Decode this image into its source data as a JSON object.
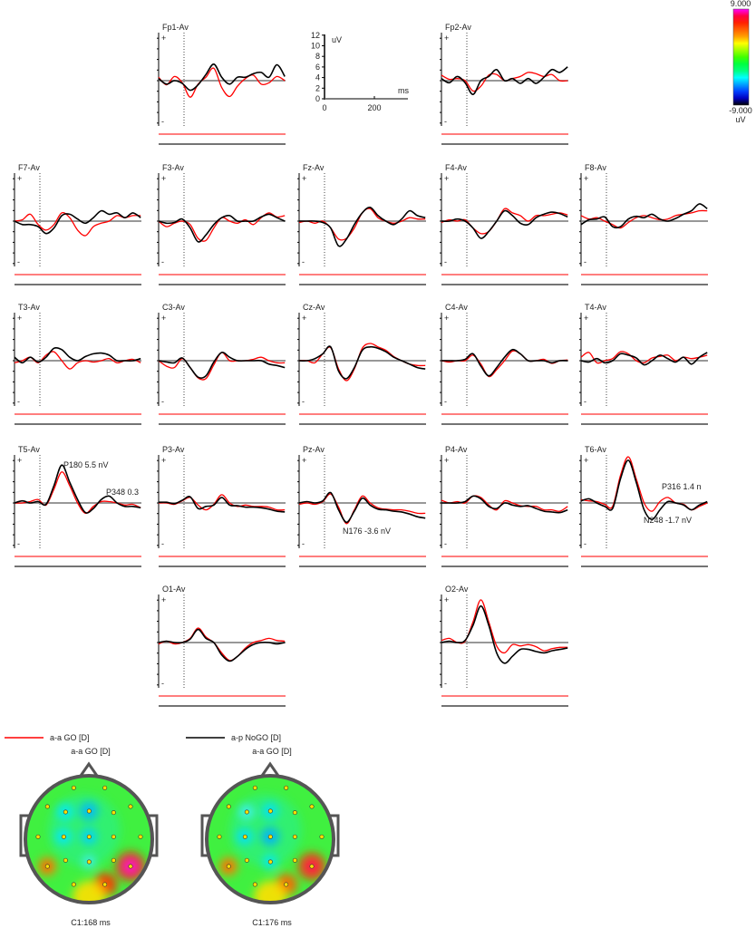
{
  "colorbar": {
    "max_label": "9.000",
    "min_label": "-9.000",
    "unit": "uV",
    "colors": [
      "#ff00ff",
      "#ff0040",
      "#ff2000",
      "#ff6000",
      "#ffa000",
      "#ffff00",
      "#a0ff00",
      "#40ff00",
      "#00ff40",
      "#00ff80",
      "#00ffff",
      "#00a0ff",
      "#0040ff",
      "#0000c0",
      "#000000"
    ]
  },
  "scale_box": {
    "y_unit": "uV",
    "x_unit": "ms",
    "y_ticks": [
      "0",
      "2",
      "4",
      "6",
      "8",
      "10",
      "12"
    ],
    "x_ticks": [
      "0",
      "200"
    ]
  },
  "legend": [
    {
      "label": "a-a GO [D]",
      "color": "#ff0000"
    },
    {
      "label": "a-p NoGO [D]",
      "color": "#000000"
    }
  ],
  "topomaps": [
    {
      "title": "a-a GO [D]",
      "caption": "C1:168 ms"
    },
    {
      "title": "a-a GO [D]",
      "caption": "C1:176 ms"
    }
  ],
  "chart_data": {
    "type": "line",
    "x_ms": [
      0,
      30,
      60,
      90,
      120,
      150,
      180,
      210,
      240,
      270,
      300,
      330,
      360,
      390,
      420,
      450,
      480
    ],
    "series_names": [
      "a-a GO [D]",
      "a-p NoGO [D]"
    ],
    "series_colors": [
      "#ff0000",
      "#000000"
    ],
    "panels": [
      {
        "label": "Fp1-Av",
        "series": [
          {
            "name": "a-a GO [D]",
            "values": [
              0.5,
              -0.6,
              0.6,
              -0.3,
              -2.4,
              -0.5,
              0.5,
              1.8,
              -1.0,
              -2.3,
              -0.8,
              0.3,
              0.8,
              -0.5,
              -0.3,
              0.6,
              0
            ]
          },
          {
            "name": "a-p NoGO [D]",
            "values": [
              0.3,
              -0.5,
              0,
              -0.4,
              -1.4,
              -0.6,
              0.9,
              2.4,
              0.5,
              -0.5,
              0.5,
              0.5,
              1.0,
              1.2,
              0.5,
              2.3,
              0.6
            ]
          }
        ]
      },
      {
        "label": "Fp2-Av",
        "series": [
          {
            "name": "a-a GO [D]",
            "values": [
              0.8,
              0.2,
              0.3,
              0,
              -1.5,
              -0.8,
              0.8,
              0.9,
              0,
              0.3,
              0.6,
              1.2,
              1.0,
              0.6,
              0.9,
              0,
              0
            ]
          },
          {
            "name": "a-p NoGO [D]",
            "values": [
              0.3,
              -0.3,
              0.6,
              -0.3,
              -2.0,
              0,
              0.6,
              1.6,
              0,
              0.3,
              -0.4,
              0.3,
              -0.4,
              0.5,
              1.6,
              1.2,
              2.0
            ]
          }
        ]
      },
      {
        "label": "F7-Av",
        "series": [
          {
            "name": "a-a GO [D]",
            "values": [
              0,
              0.2,
              1.0,
              -0.5,
              -1.3,
              -0.5,
              1.2,
              0.5,
              -1.3,
              -2.1,
              -0.8,
              -0.3,
              0,
              0.8,
              0.5,
              0.8,
              0.8
            ]
          },
          {
            "name": "a-p NoGO [D]",
            "values": [
              0,
              -0.5,
              -0.5,
              -0.8,
              -1.8,
              -1.0,
              0.8,
              1.0,
              0.3,
              -0.3,
              0.5,
              1.5,
              1.0,
              1.2,
              0.5,
              1.2,
              0.5
            ]
          }
        ]
      },
      {
        "label": "F3-Av",
        "series": [
          {
            "name": "a-a GO [D]",
            "values": [
              0,
              -0.8,
              -0.3,
              0,
              -0.5,
              -2.5,
              -2.8,
              -1.0,
              0.5,
              0,
              -0.3,
              0.2,
              -0.5,
              0.5,
              1.2,
              0.6,
              0.8
            ]
          },
          {
            "name": "a-p NoGO [D]",
            "values": [
              0,
              -0.3,
              -0.2,
              0.3,
              -1.0,
              -3.0,
              -2.0,
              -0.5,
              0.5,
              0.8,
              0,
              0,
              0,
              0.6,
              1.0,
              0.5,
              0
            ]
          }
        ]
      },
      {
        "label": "Fz-Av",
        "series": [
          {
            "name": "a-a GO [D]",
            "values": [
              -0.2,
              0,
              -0.3,
              0,
              -1.0,
              -2.6,
              -2.5,
              -1.0,
              1.2,
              1.8,
              0.5,
              0,
              -0.3,
              0,
              0.5,
              0.3,
              0.3
            ]
          },
          {
            "name": "a-p NoGO [D]",
            "values": [
              0,
              0,
              0,
              -0.2,
              -1.0,
              -3.6,
              -2.6,
              -0.5,
              1.2,
              2.0,
              0.8,
              0,
              -0.5,
              0.3,
              1.5,
              0.8,
              0.5
            ]
          }
        ]
      },
      {
        "label": "F4-Av",
        "series": [
          {
            "name": "a-a GO [D]",
            "values": [
              -0.2,
              0.2,
              0,
              0.2,
              -1.0,
              -1.8,
              -1.5,
              0,
              1.8,
              1.2,
              0.8,
              0,
              0.8,
              0.8,
              1.0,
              1.2,
              0.9
            ]
          },
          {
            "name": "a-p NoGO [D]",
            "values": [
              0,
              0,
              0.3,
              0,
              -1.0,
              -2.5,
              -1.5,
              0,
              1.5,
              0.8,
              -0.3,
              -0.5,
              0.5,
              1.0,
              1.3,
              1.1,
              0.6
            ]
          }
        ]
      },
      {
        "label": "F8-Av",
        "series": [
          {
            "name": "a-a GO [D]",
            "values": [
              0.8,
              0.3,
              0.5,
              0,
              -0.5,
              -1.0,
              -0.2,
              0.5,
              0.8,
              0.5,
              0.2,
              0.3,
              0.8,
              1.0,
              1.2,
              1.5,
              1.5
            ]
          },
          {
            "name": "a-p NoGO [D]",
            "values": [
              -0.5,
              0.2,
              0.3,
              0.6,
              -0.8,
              -0.8,
              0.3,
              0.7,
              0.5,
              1.0,
              0.3,
              0,
              0.4,
              1.0,
              1.5,
              2.5,
              1.8
            ]
          }
        ]
      },
      {
        "label": "T3-Av",
        "series": [
          {
            "name": "a-a GO [D]",
            "values": [
              -0.3,
              0,
              0.5,
              -0.3,
              0.8,
              1.3,
              0,
              -1.2,
              -0.3,
              0,
              -0.2,
              0,
              0.3,
              -0.3,
              0,
              0.2,
              -0.3
            ]
          },
          {
            "name": "a-p NoGO [D]",
            "values": [
              0.5,
              -0.3,
              0.5,
              -0.2,
              0.5,
              1.8,
              1.6,
              0.5,
              0,
              0.6,
              1.0,
              1.1,
              0.8,
              0,
              0,
              0,
              0.3
            ]
          }
        ]
      },
      {
        "label": "C3-Av",
        "series": [
          {
            "name": "a-a GO [D]",
            "values": [
              0,
              -0.8,
              -1.0,
              0.3,
              -1.0,
              -2.5,
              -2.6,
              -0.6,
              1.2,
              0,
              0,
              0,
              0.2,
              0.5,
              0,
              -0.3,
              -0.3
            ]
          },
          {
            "name": "a-p NoGO [D]",
            "values": [
              0,
              -0.2,
              -0.3,
              0.4,
              -1.0,
              -2.4,
              -2.2,
              -0.2,
              1.2,
              0.5,
              0,
              0,
              0,
              0,
              -0.5,
              -0.7,
              -1.0
            ]
          }
        ]
      },
      {
        "label": "Cz-Av",
        "series": [
          {
            "name": "a-a GO [D]",
            "values": [
              0,
              0,
              -0.3,
              1.0,
              1.9,
              -1.2,
              -2.9,
              -1.2,
              1.8,
              2.5,
              2.0,
              1.5,
              0.6,
              0,
              -0.5,
              -0.7,
              -0.7
            ]
          },
          {
            "name": "a-p NoGO [D]",
            "values": [
              0,
              0,
              0.3,
              1.0,
              2.0,
              -1.5,
              -2.6,
              -1.0,
              1.5,
              2.0,
              1.8,
              1.3,
              0.5,
              0,
              -0.5,
              -1.0,
              -1.2
            ]
          }
        ]
      },
      {
        "label": "C4-Av",
        "series": [
          {
            "name": "a-a GO [D]",
            "values": [
              0,
              -0.2,
              0,
              0,
              0.8,
              -0.5,
              -2.3,
              -1.3,
              0,
              1.4,
              1.0,
              0,
              0,
              0.2,
              -0.4,
              0,
              0.1
            ]
          },
          {
            "name": "a-p NoGO [D]",
            "values": [
              0,
              0,
              0,
              0.2,
              1.0,
              -0.8,
              -2.2,
              -1.0,
              0.5,
              1.6,
              1.0,
              0,
              0,
              0,
              -0.3,
              0,
              0
            ]
          }
        ]
      },
      {
        "label": "T4-Av",
        "series": [
          {
            "name": "a-a GO [D]",
            "values": [
              0.5,
              1.2,
              -0.3,
              0,
              0.3,
              1.3,
              1.0,
              0,
              -0.3,
              0.4,
              0.6,
              0.8,
              0,
              0.5,
              0.3,
              0.5,
              0.8
            ]
          },
          {
            "name": "a-p NoGO [D]",
            "values": [
              0,
              -0.2,
              0.3,
              -0.3,
              0,
              1.0,
              0.8,
              0.4,
              -0.6,
              0,
              0.8,
              0.3,
              -0.2,
              0.5,
              -0.5,
              0.5,
              1.2
            ]
          }
        ]
      },
      {
        "label": "T5-Av",
        "series": [
          {
            "name": "a-a GO [D]",
            "values": [
              0,
              0,
              0.2,
              0.5,
              -0.3,
              2.0,
              4.5,
              2.5,
              0,
              -1.5,
              -0.5,
              0.2,
              0.2,
              0,
              -0.3,
              -0.2,
              -0.7
            ]
          },
          {
            "name": "a-p NoGO [D]",
            "values": [
              0,
              0.3,
              0,
              0.2,
              -0.2,
              2.5,
              5.5,
              3.0,
              0.5,
              -1.4,
              -0.8,
              0.5,
              1.0,
              0,
              -0.5,
              -0.5,
              -0.7
            ]
          }
        ],
        "annotations": [
          "P180   5.5 nV",
          "P348   0.3"
        ]
      },
      {
        "label": "P3-Av",
        "series": [
          {
            "name": "a-a GO [D]",
            "values": [
              0,
              0,
              -0.2,
              0.3,
              0.8,
              -0.3,
              -1.0,
              -0.2,
              1.2,
              0,
              -0.5,
              -0.3,
              -0.5,
              -0.5,
              -0.6,
              -1.0,
              -1.0
            ]
          },
          {
            "name": "a-p NoGO [D]",
            "values": [
              0.1,
              0.1,
              -0.1,
              0.4,
              0.9,
              -0.8,
              -0.5,
              -0.3,
              0.8,
              -0.3,
              -0.4,
              -0.6,
              -0.6,
              -0.7,
              -0.9,
              -1.2,
              -1.3
            ]
          }
        ]
      },
      {
        "label": "Pz-Av",
        "series": [
          {
            "name": "a-a GO [D]",
            "values": [
              -0.2,
              0,
              -0.2,
              0.2,
              1.3,
              -0.6,
              -3.0,
              -1.0,
              1.0,
              0,
              -0.7,
              -0.9,
              -1.0,
              -1.0,
              -1.2,
              -1.5,
              -1.5
            ]
          },
          {
            "name": "a-p NoGO [D]",
            "values": [
              0,
              0.2,
              0,
              0.3,
              1.5,
              -1.0,
              -2.8,
              -1.2,
              0.7,
              -0.3,
              -0.9,
              -1.0,
              -1.2,
              -1.3,
              -1.6,
              -2.0,
              -2.2
            ]
          }
        ],
        "annotations": [
          "N176   -3.6 nV"
        ]
      },
      {
        "label": "P4-Av",
        "series": [
          {
            "name": "a-a GO [D]",
            "values": [
              0.4,
              0,
              0.2,
              0,
              1.0,
              0.8,
              -0.3,
              -1.0,
              0.3,
              0,
              -0.4,
              -0.5,
              -0.5,
              -1.0,
              -1.0,
              -1.2,
              -0.5
            ]
          },
          {
            "name": "a-p NoGO [D]",
            "values": [
              0,
              0,
              0,
              0.2,
              1.0,
              0.6,
              -0.5,
              -0.8,
              0,
              -0.3,
              -0.5,
              -0.4,
              -0.8,
              -1.2,
              -1.3,
              -1.4,
              -1.0
            ]
          }
        ]
      },
      {
        "label": "T6-Av",
        "series": [
          {
            "name": "a-a GO [D]",
            "values": [
              0.5,
              0.3,
              0.2,
              -0.2,
              -0.5,
              4.0,
              6.7,
              3.5,
              0,
              -1.2,
              0.2,
              0.8,
              0,
              -0.2,
              -1.0,
              -0.5,
              0
            ]
          },
          {
            "name": "a-p NoGO [D]",
            "values": [
              0.3,
              0.6,
              0,
              -0.5,
              -0.8,
              3.5,
              6.2,
              3.0,
              -1.0,
              -2.4,
              -1.0,
              0.2,
              0,
              -0.3,
              -1.0,
              -0.3,
              0.2
            ]
          }
        ],
        "annotations": [
          "P316   1.4 n",
          "N248   -1.7 nV"
        ]
      },
      {
        "label": "O1-Av",
        "series": [
          {
            "name": "a-a GO [D]",
            "values": [
              -0.2,
              0.2,
              -0.2,
              0,
              0.6,
              2.1,
              0.8,
              0,
              -1.5,
              -2.6,
              -2.0,
              -0.8,
              0,
              0.3,
              0.6,
              0.3,
              0.2
            ]
          },
          {
            "name": "a-p NoGO [D]",
            "values": [
              0,
              0.2,
              0,
              0,
              0.5,
              1.9,
              0.6,
              0,
              -1.8,
              -2.7,
              -2.0,
              -1.0,
              -0.3,
              0,
              0,
              -0.2,
              0
            ]
          }
        ]
      },
      {
        "label": "O2-Av",
        "series": [
          {
            "name": "a-a GO [D]",
            "values": [
              0.3,
              0.6,
              0,
              0.2,
              3.0,
              6.2,
              3.0,
              -0.5,
              -1.5,
              -0.3,
              -0.5,
              -0.3,
              -0.6,
              -1.2,
              -0.9,
              -0.7,
              -0.7
            ]
          },
          {
            "name": "a-p NoGO [D]",
            "values": [
              0,
              0.2,
              0,
              0.3,
              2.5,
              5.3,
              2.5,
              -1.5,
              -3.0,
              -2.0,
              -1.0,
              -1.0,
              -1.3,
              -1.5,
              -1.2,
              -1.0,
              -0.8
            ]
          }
        ]
      }
    ]
  }
}
